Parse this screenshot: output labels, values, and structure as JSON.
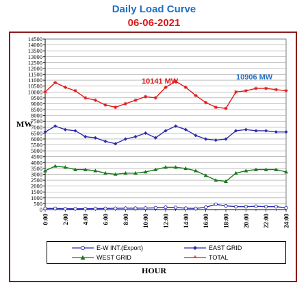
{
  "chart_data": {
    "type": "line",
    "title": "Daily Load Curve",
    "subtitle": "06-06-2021",
    "xlabel": "HOUR",
    "ylabel": "MW",
    "ylim": [
      0,
      14500
    ],
    "ytick_step": 500,
    "x_tick_labels": [
      "0:00",
      "2:00",
      "4:00",
      "6:00",
      "8:00",
      "10:00",
      "12:00",
      "14:00",
      "16:00",
      "18:00",
      "20:00",
      "22:00",
      "24:00"
    ],
    "x_hours": [
      0,
      1,
      2,
      3,
      4,
      5,
      6,
      7,
      8,
      9,
      10,
      11,
      12,
      13,
      14,
      15,
      16,
      17,
      18,
      19,
      20,
      21,
      22,
      23,
      24
    ],
    "grid_y": true,
    "legend_placement": "bottom",
    "series": [
      {
        "name": "E-W INT.(Export)",
        "color": "#2b2bb0",
        "marker": "circle-open",
        "values": [
          100,
          100,
          80,
          70,
          80,
          90,
          100,
          110,
          120,
          120,
          130,
          150,
          200,
          180,
          120,
          100,
          200,
          450,
          320,
          250,
          250,
          280,
          250,
          250,
          150
        ]
      },
      {
        "name": "EAST GRID",
        "color": "#2b2bb0",
        "marker": "diamond",
        "values": [
          6600,
          7100,
          6800,
          6700,
          6200,
          6100,
          5800,
          5600,
          6000,
          6200,
          6500,
          6100,
          6700,
          7100,
          6800,
          6300,
          6000,
          5900,
          6000,
          6700,
          6800,
          6700,
          6700,
          6600,
          6600
        ]
      },
      {
        "name": "WEST GRID",
        "color": "#1a7a1a",
        "marker": "triangle",
        "values": [
          3300,
          3700,
          3600,
          3400,
          3400,
          3300,
          3100,
          3000,
          3100,
          3100,
          3200,
          3400,
          3600,
          3600,
          3500,
          3300,
          2900,
          2500,
          2400,
          3100,
          3300,
          3400,
          3400,
          3400,
          3200
        ]
      },
      {
        "name": "TOTAL",
        "color": "#e01818",
        "marker": "star",
        "values": [
          10000,
          10800,
          10400,
          10100,
          9500,
          9300,
          8900,
          8700,
          9000,
          9300,
          9600,
          9500,
          10400,
          10900,
          10400,
          9700,
          9100,
          8700,
          8600,
          10000,
          10100,
          10300,
          10300,
          10200,
          10100
        ]
      }
    ],
    "annotations": [
      {
        "text": "10141 MW",
        "color": "#e01818"
      },
      {
        "text": "10906 MW",
        "color": "#1f6fc4"
      }
    ]
  }
}
